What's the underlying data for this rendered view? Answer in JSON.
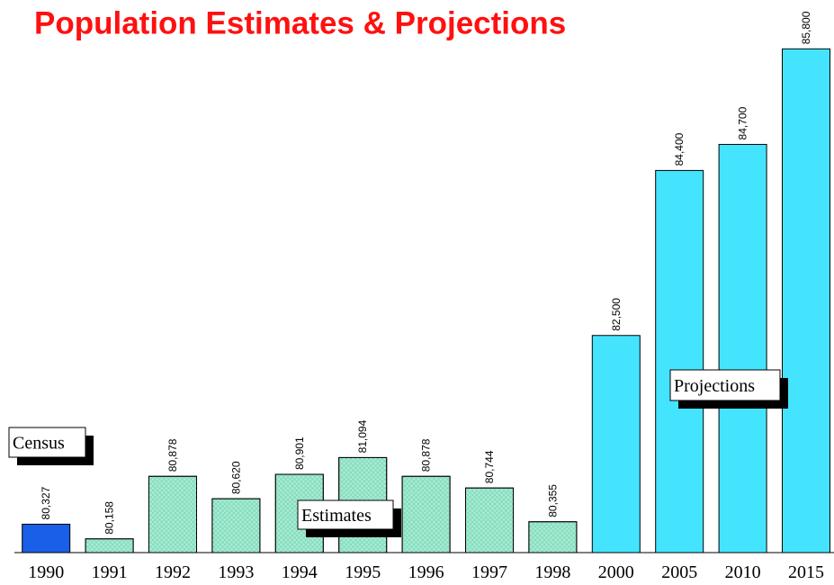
{
  "chart_data": {
    "type": "bar",
    "title": "Population Estimates & Projections",
    "categories": [
      "1990",
      "1991",
      "1992",
      "1993",
      "1994",
      "1995",
      "1996",
      "1997",
      "1998",
      "2000",
      "2005",
      "2010",
      "2015"
    ],
    "values": [
      80327,
      80158,
      80878,
      80620,
      80901,
      81094,
      80878,
      80744,
      80355,
      82500,
      84400,
      84700,
      85800
    ],
    "value_labels": [
      "80,327",
      "80,158",
      "80,878",
      "80,620",
      "80,901",
      "81,094",
      "80,878",
      "80,744",
      "80,355",
      "82,500",
      "84,400",
      "84,700",
      "85,800"
    ],
    "colors": [
      "#1a5fe8",
      "#a8ecd4",
      "#a8ecd4",
      "#a8ecd4",
      "#a8ecd4",
      "#a8ecd4",
      "#a8ecd4",
      "#a8ecd4",
      "#a8ecd4",
      "#44e4ff",
      "#44e4ff",
      "#44e4ff",
      "#44e4ff"
    ],
    "hatched": [
      false,
      true,
      true,
      true,
      true,
      true,
      true,
      true,
      true,
      false,
      false,
      false,
      false
    ],
    "ylim": [
      80000,
      86000
    ],
    "grid": false,
    "annotations": [
      {
        "text": "Census"
      },
      {
        "text": "Estimates"
      },
      {
        "text": "Projections"
      }
    ]
  }
}
